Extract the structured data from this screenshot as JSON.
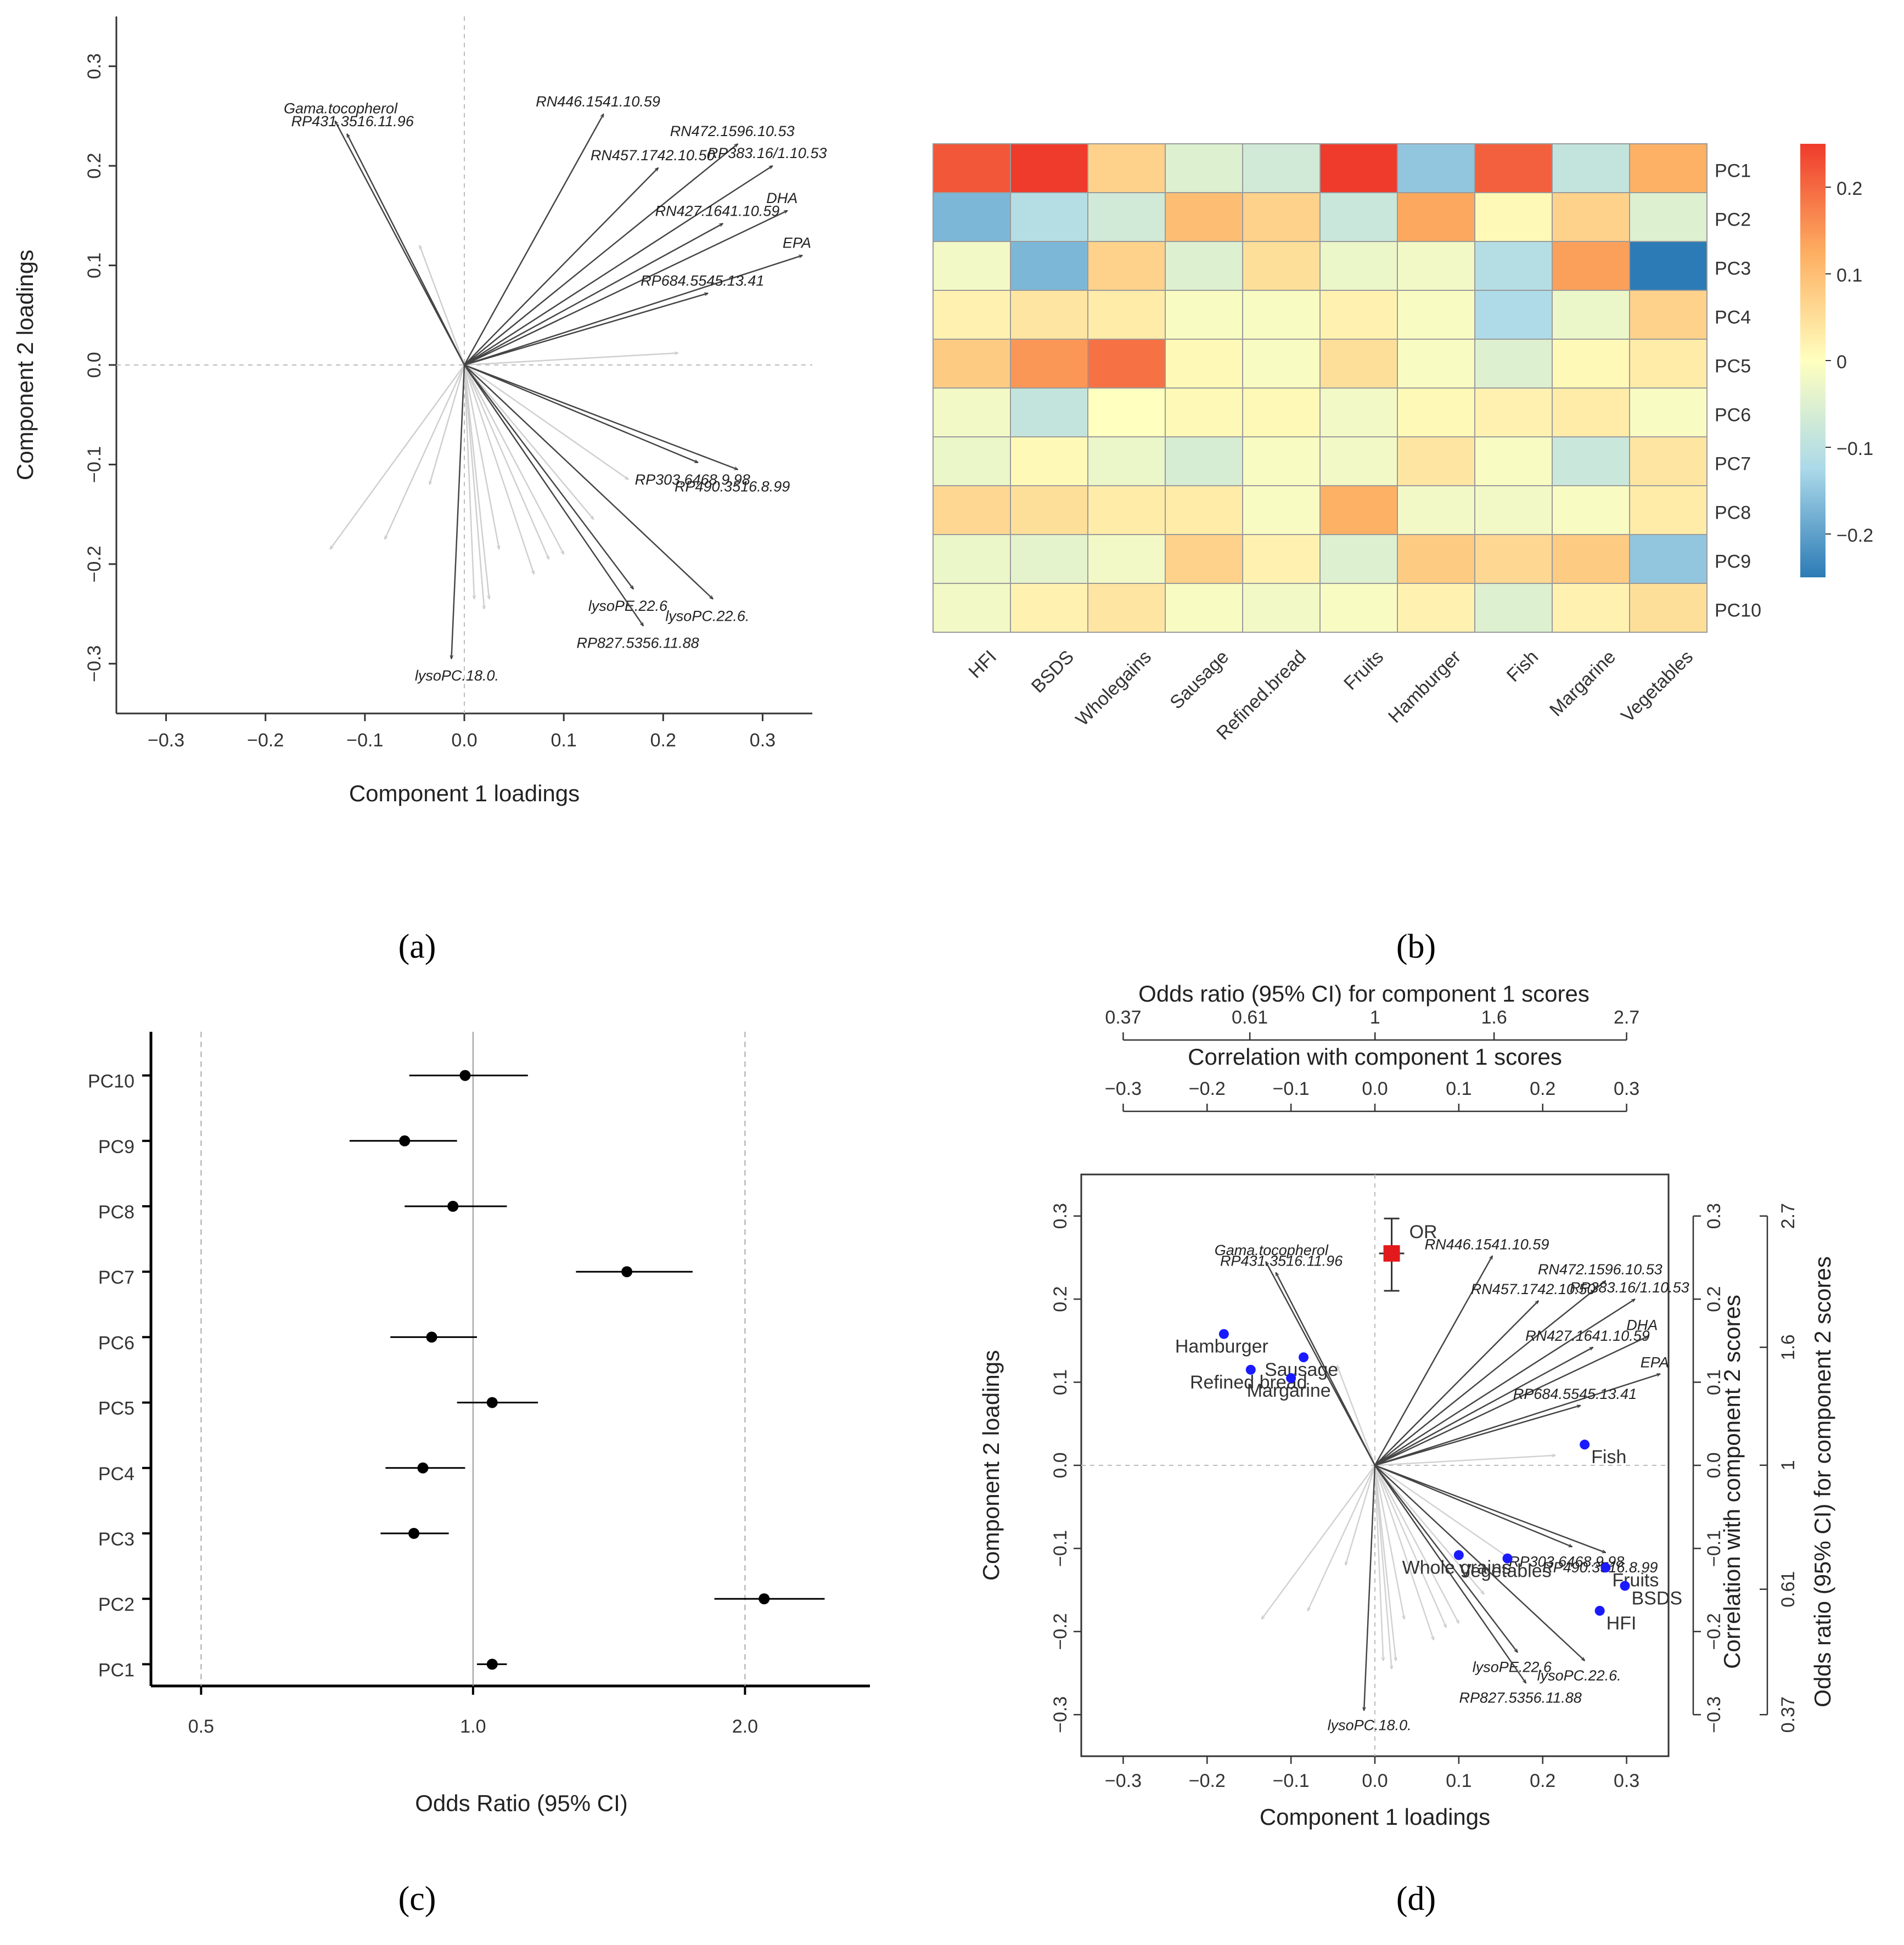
{
  "panel_labels": {
    "a": "(a)",
    "b": "(b)",
    "c": "(c)",
    "d": "(d)"
  },
  "chart_data": [
    {
      "panel": "a",
      "type": "biplot",
      "xlabel": "Component 1 loadings",
      "ylabel": "Component 2 loadings",
      "xlim": [
        -0.35,
        0.35
      ],
      "ylim": [
        -0.35,
        0.35
      ],
      "xticks": [
        "-0.3",
        "-0.2",
        "-0.1",
        "0.0",
        "0.1",
        "0.2",
        "0.3"
      ],
      "yticks": [
        "-0.3",
        "-0.2",
        "-0.1",
        "0.0",
        "0.1",
        "0.2",
        "0.3"
      ],
      "labeled_vectors": [
        {
          "name": "Gama.tocopherol",
          "x": -0.13,
          "y": 0.245
        },
        {
          "name": "RP431.3516.11.96",
          "x": -0.118,
          "y": 0.232
        },
        {
          "name": "RN446.1541.10.59",
          "x": 0.14,
          "y": 0.252
        },
        {
          "name": "RN472.1596.10.53",
          "x": 0.275,
          "y": 0.222
        },
        {
          "name": "RP383.16/1.10.53",
          "x": 0.31,
          "y": 0.2
        },
        {
          "name": "RN457.1742.10.50",
          "x": 0.195,
          "y": 0.198
        },
        {
          "name": "RN427.1641.10.59",
          "x": 0.26,
          "y": 0.142
        },
        {
          "name": "DHA",
          "x": 0.325,
          "y": 0.155
        },
        {
          "name": "EPA",
          "x": 0.34,
          "y": 0.11
        },
        {
          "name": "RP684.5545.13.41",
          "x": 0.245,
          "y": 0.072
        },
        {
          "name": "RP303.6468.9.98",
          "x": 0.235,
          "y": -0.098
        },
        {
          "name": "RP490.3516.8.99",
          "x": 0.275,
          "y": -0.105
        },
        {
          "name": "lysoPE.22.6",
          "x": 0.17,
          "y": -0.225
        },
        {
          "name": "lysoPC.22.6.",
          "x": 0.25,
          "y": -0.235
        },
        {
          "name": "RP827.5356.11.88",
          "x": 0.18,
          "y": -0.262
        },
        {
          "name": "lysoPC.18.0.",
          "x": -0.013,
          "y": -0.295
        }
      ],
      "unlabeled_vectors": [
        {
          "x": -0.135,
          "y": -0.185
        },
        {
          "x": -0.08,
          "y": -0.175
        },
        {
          "x": -0.035,
          "y": -0.12
        },
        {
          "x": -0.045,
          "y": 0.12
        },
        {
          "x": 0.01,
          "y": -0.235
        },
        {
          "x": 0.02,
          "y": -0.245
        },
        {
          "x": 0.025,
          "y": -0.235
        },
        {
          "x": 0.035,
          "y": -0.185
        },
        {
          "x": 0.07,
          "y": -0.21
        },
        {
          "x": 0.085,
          "y": -0.195
        },
        {
          "x": 0.1,
          "y": -0.19
        },
        {
          "x": 0.13,
          "y": -0.155
        },
        {
          "x": 0.165,
          "y": -0.115
        },
        {
          "x": 0.215,
          "y": 0.012
        }
      ]
    },
    {
      "panel": "b",
      "type": "heatmap",
      "columns": [
        "HFI",
        "BSDS",
        "Wholegains",
        "Sausage",
        "Refined.bread",
        "Fruits",
        "Hamburger",
        "Fish",
        "Margarine",
        "Vegetables"
      ],
      "rows": [
        "PC1",
        "PC2",
        "PC3",
        "PC4",
        "PC5",
        "PC6",
        "PC7",
        "PC8",
        "PC9",
        "PC10"
      ],
      "values": [
        [
          0.22,
          0.26,
          0.07,
          -0.05,
          -0.07,
          0.25,
          -0.15,
          0.21,
          -0.09,
          0.12
        ],
        [
          -0.17,
          -0.11,
          -0.07,
          0.1,
          0.07,
          -0.08,
          0.13,
          0.01,
          0.07,
          -0.05
        ],
        [
          -0.02,
          -0.17,
          0.07,
          -0.05,
          0.05,
          -0.03,
          -0.02,
          -0.11,
          0.14,
          -0.25
        ],
        [
          0.02,
          0.04,
          0.03,
          -0.01,
          -0.01,
          0.02,
          -0.01,
          -0.12,
          -0.03,
          0.07
        ],
        [
          0.08,
          0.15,
          0.19,
          0.01,
          -0.01,
          0.05,
          -0.01,
          -0.05,
          0.01,
          0.03
        ],
        [
          -0.02,
          -0.09,
          0.0,
          0.01,
          0.01,
          -0.02,
          0.01,
          0.02,
          0.03,
          -0.01
        ],
        [
          -0.03,
          0.01,
          -0.03,
          -0.06,
          -0.01,
          -0.02,
          0.04,
          -0.01,
          -0.08,
          0.04
        ],
        [
          0.06,
          0.05,
          0.03,
          0.03,
          -0.01,
          0.12,
          -0.02,
          -0.02,
          -0.01,
          0.03
        ],
        [
          -0.03,
          -0.04,
          -0.02,
          0.07,
          0.02,
          -0.05,
          0.08,
          0.06,
          0.08,
          -0.15
        ],
        [
          -0.02,
          0.02,
          0.04,
          -0.01,
          -0.02,
          -0.01,
          0.02,
          -0.05,
          0.02,
          0.05
        ]
      ],
      "colorbar": {
        "ticks": [
          "0.2",
          "0.1",
          "0",
          "-0.1",
          "-0.2"
        ],
        "range": [
          -0.25,
          0.25
        ]
      }
    },
    {
      "panel": "c",
      "type": "forest",
      "xlabel": "Odds Ratio (95% CI)",
      "xticks": [
        "0.5",
        "1.0",
        "2.0"
      ],
      "log_scale": true,
      "rows": [
        {
          "label": "PC10",
          "or": 0.98,
          "lo": 0.85,
          "hi": 1.15
        },
        {
          "label": "PC9",
          "or": 0.84,
          "lo": 0.73,
          "hi": 0.96
        },
        {
          "label": "PC8",
          "or": 0.95,
          "lo": 0.84,
          "hi": 1.09
        },
        {
          "label": "PC7",
          "or": 1.48,
          "lo": 1.3,
          "hi": 1.75
        },
        {
          "label": "PC6",
          "or": 0.9,
          "lo": 0.81,
          "hi": 1.01
        },
        {
          "label": "PC5",
          "or": 1.05,
          "lo": 0.96,
          "hi": 1.18
        },
        {
          "label": "PC4",
          "or": 0.88,
          "lo": 0.8,
          "hi": 0.98
        },
        {
          "label": "PC3",
          "or": 0.86,
          "lo": 0.79,
          "hi": 0.94
        },
        {
          "label": "PC2",
          "or": 2.1,
          "lo": 1.85,
          "hi": 2.45
        },
        {
          "label": "PC1",
          "or": 1.05,
          "lo": 1.01,
          "hi": 1.09
        }
      ]
    },
    {
      "panel": "d",
      "type": "biplot",
      "xlabel": "Component 1 loadings",
      "ylabel": "Component 2 loadings",
      "top_axis_or_title": "Odds ratio (95% CI) for component 1 scores",
      "top_axis_or_ticks": [
        "0.37",
        "0.61",
        "1",
        "1.6",
        "2.7"
      ],
      "top_axis_corr_title": "Correlation with component 1 scores",
      "top_axis_corr_ticks": [
        "-0.3",
        "-0.2",
        "-0.1",
        "0.0",
        "0.1",
        "0.2",
        "0.3"
      ],
      "right_axis_corr_title": "Correlation with component 2 scores",
      "right_axis_corr_ticks": [
        "0.3",
        "0.2",
        "0.1",
        "0.0",
        "-0.1",
        "-0.2",
        "-0.3"
      ],
      "right_axis_or_title": "Odds ratio (95% CI) for component 2 scores",
      "right_axis_or_ticks": [
        "2.7",
        "1.6",
        "1",
        "0.61",
        "0.37"
      ],
      "or_marker": {
        "label": "OR",
        "x": 0.02,
        "y": 0.255,
        "y_lo": 0.21,
        "y_hi": 0.297,
        "x_lo": 0.005,
        "x_hi": 0.035
      },
      "food_points": [
        {
          "name": "Hamburger",
          "x": -0.18,
          "y": 0.158
        },
        {
          "name": "Sausage",
          "x": -0.085,
          "y": 0.13
        },
        {
          "name": "Refined bread",
          "x": -0.148,
          "y": 0.115
        },
        {
          "name": "Margarine",
          "x": -0.1,
          "y": 0.105
        },
        {
          "name": "Fish",
          "x": 0.25,
          "y": 0.025
        },
        {
          "name": "Whole grains",
          "x": 0.1,
          "y": -0.108
        },
        {
          "name": "Vegetables",
          "x": 0.158,
          "y": -0.112
        },
        {
          "name": "Fruits",
          "x": 0.275,
          "y": -0.123
        },
        {
          "name": "BSDS",
          "x": 0.298,
          "y": -0.145
        },
        {
          "name": "HFI",
          "x": 0.268,
          "y": -0.175
        }
      ]
    }
  ]
}
